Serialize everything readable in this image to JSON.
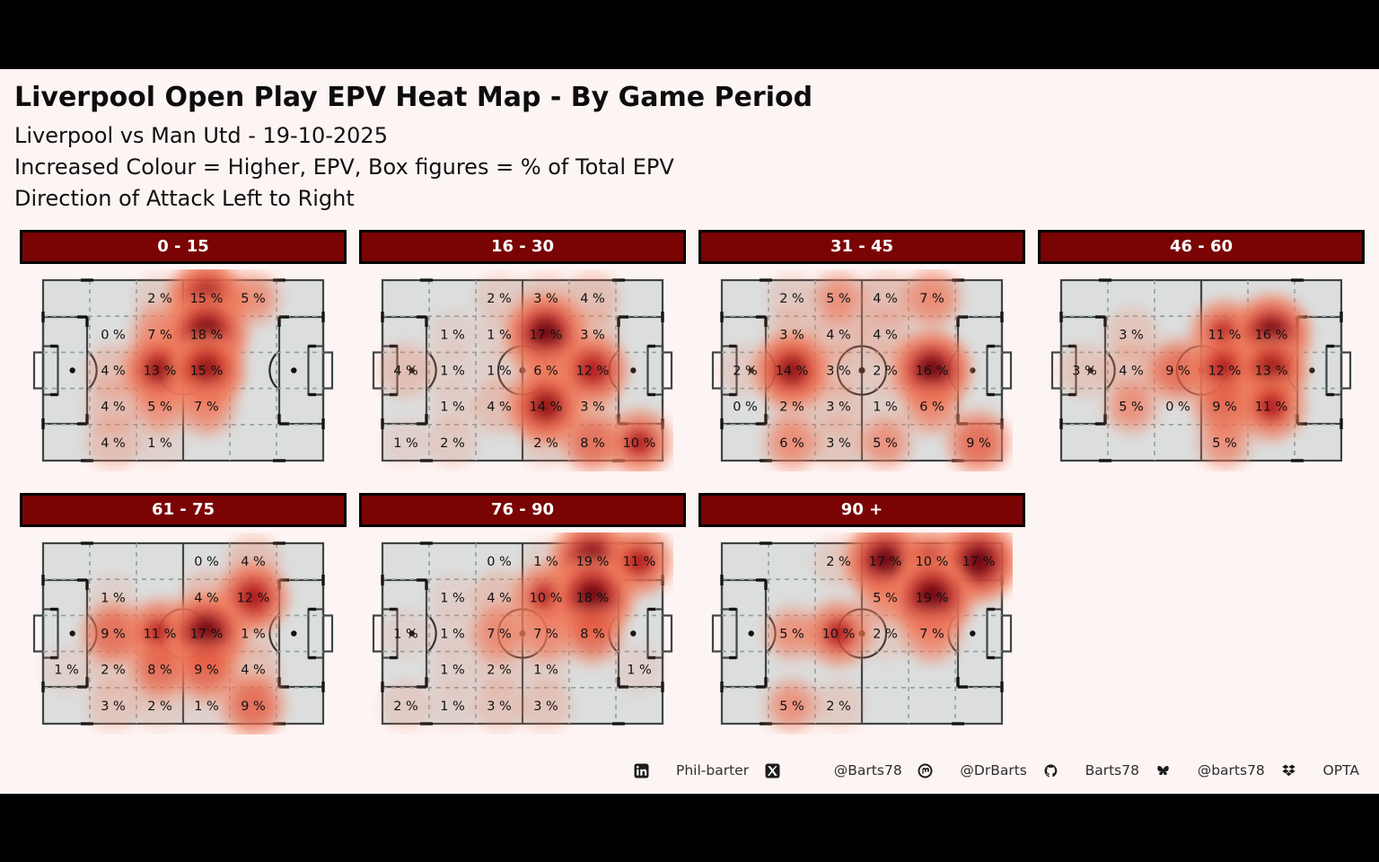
{
  "title": "Liverpool Open Play EPV Heat Map - By Game Period",
  "subtitle_lines": [
    "Liverpool vs Man Utd - 19-10-2025",
    "Increased Colour = Higher, EPV, Box figures = % of Total EPV",
    "Direction of Attack Left to Right"
  ],
  "colors": {
    "canvas_bg": "#fdf5f4",
    "letterbox": "#000000",
    "header_bg": "#7a0404",
    "header_border": "#050505",
    "header_text": "#ffffff",
    "pitch_fill": "#dcdede",
    "pitch_line": "#3e4444",
    "grid_dash": "#8fa0a0",
    "heat_low": "#fcbba1",
    "heat_high": "#67000d",
    "label_text": "#111111"
  },
  "chart_data": {
    "type": "heatmap",
    "title": "Liverpool Open Play EPV Heat Map - By Game Period",
    "description": "Seven football-pitch zone heatmaps (6 columns x 5 rows each). Cell values are % of total EPV for that game period. Direction of attack left to right. Darker red = higher EPV.",
    "grid": {
      "cols": 6,
      "rows": 5
    },
    "value_suffix": " %",
    "periods": [
      {
        "label": "0 - 15",
        "values": [
          [
            null,
            null,
            2,
            15,
            5,
            null
          ],
          [
            null,
            0,
            7,
            18,
            null,
            null
          ],
          [
            null,
            4,
            13,
            15,
            null,
            null
          ],
          [
            null,
            4,
            5,
            7,
            null,
            null
          ],
          [
            null,
            4,
            1,
            null,
            null,
            null
          ]
        ]
      },
      {
        "label": "16 - 30",
        "values": [
          [
            null,
            null,
            2,
            3,
            4,
            null
          ],
          [
            null,
            1,
            1,
            17,
            3,
            null
          ],
          [
            4,
            1,
            1,
            6,
            12,
            null
          ],
          [
            null,
            1,
            4,
            14,
            3,
            null
          ],
          [
            1,
            2,
            null,
            2,
            8,
            10
          ]
        ]
      },
      {
        "label": "31 - 45",
        "values": [
          [
            null,
            2,
            5,
            4,
            7,
            null
          ],
          [
            null,
            3,
            4,
            4,
            null,
            null
          ],
          [
            2,
            14,
            3,
            2,
            16,
            null
          ],
          [
            0,
            2,
            3,
            1,
            6,
            null
          ],
          [
            null,
            6,
            3,
            5,
            null,
            9
          ]
        ]
      },
      {
        "label": "46 - 60",
        "values": [
          [
            null,
            null,
            null,
            null,
            null,
            null
          ],
          [
            null,
            3,
            null,
            11,
            16,
            null
          ],
          [
            3,
            4,
            9,
            12,
            13,
            null
          ],
          [
            null,
            5,
            0,
            9,
            11,
            null
          ],
          [
            null,
            null,
            null,
            5,
            null,
            null
          ]
        ]
      },
      {
        "label": "61 - 75",
        "values": [
          [
            null,
            null,
            null,
            0,
            4,
            null
          ],
          [
            null,
            1,
            null,
            4,
            12,
            null
          ],
          [
            null,
            9,
            11,
            17,
            1,
            null
          ],
          [
            1,
            2,
            8,
            9,
            4,
            null
          ],
          [
            null,
            3,
            2,
            1,
            9,
            null
          ]
        ]
      },
      {
        "label": "76 - 90",
        "values": [
          [
            null,
            null,
            0,
            1,
            19,
            11
          ],
          [
            null,
            1,
            4,
            10,
            18,
            null
          ],
          [
            1,
            1,
            7,
            7,
            8,
            null
          ],
          [
            null,
            1,
            2,
            1,
            null,
            1
          ],
          [
            2,
            1,
            3,
            3,
            null,
            null
          ]
        ]
      },
      {
        "label": "90 +",
        "values": [
          [
            null,
            null,
            2,
            17,
            10,
            17
          ],
          [
            null,
            null,
            null,
            5,
            19,
            null
          ],
          [
            null,
            5,
            10,
            2,
            7,
            null
          ],
          [
            null,
            null,
            null,
            null,
            null,
            null
          ],
          [
            null,
            5,
            2,
            null,
            null,
            null
          ]
        ]
      }
    ]
  },
  "footer": {
    "items": [
      {
        "icon": "linkedin-icon",
        "label": "Phil-barter"
      },
      {
        "icon": "x-twitter-icon",
        "label": "@Barts78"
      },
      {
        "icon": "mastodon-icon",
        "label": "@DrBarts"
      },
      {
        "icon": "github-icon",
        "label": "Barts78"
      },
      {
        "icon": "bluesky-icon",
        "label": "@barts78"
      },
      {
        "icon": "dropbox-icon",
        "label": "OPTA"
      }
    ]
  }
}
